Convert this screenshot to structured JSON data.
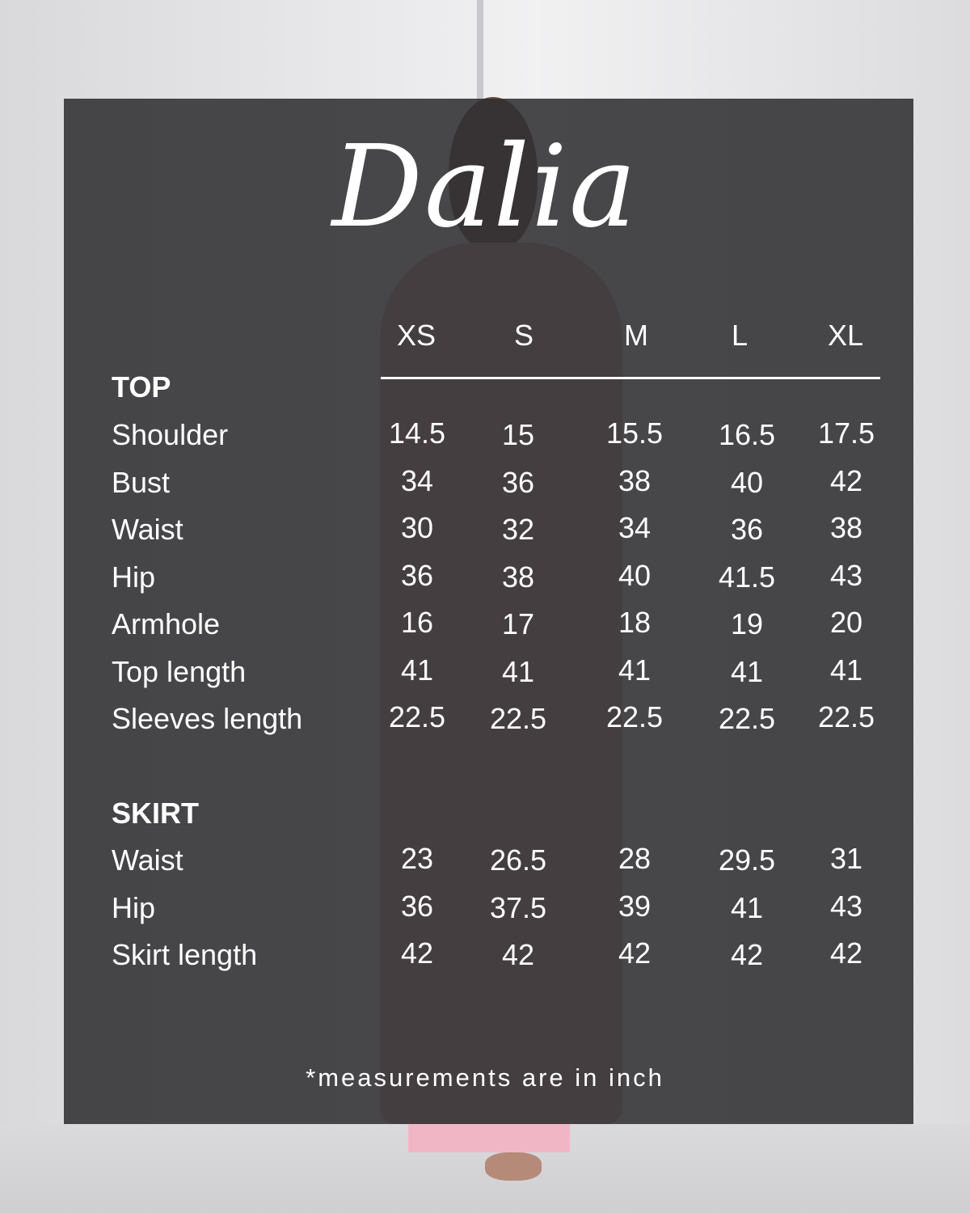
{
  "title": "Dalia",
  "sizes": [
    "XS",
    "S",
    "M",
    "L",
    "XL"
  ],
  "sections": [
    {
      "heading": "TOP",
      "rows": [
        {
          "label": "Shoulder",
          "values": [
            "14.5",
            "15",
            "15.5",
            "16.5",
            "17.5"
          ]
        },
        {
          "label": "Bust",
          "values": [
            "34",
            "36",
            "38",
            "40",
            "42"
          ]
        },
        {
          "label": "Waist",
          "values": [
            "30",
            "32",
            "34",
            "36",
            "38"
          ]
        },
        {
          "label": "Hip",
          "values": [
            "36",
            "38",
            "40",
            "41.5",
            "43"
          ]
        },
        {
          "label": "Armhole",
          "values": [
            "16",
            "17",
            "18",
            "19",
            "20"
          ]
        },
        {
          "label": "Top length",
          "values": [
            "41",
            "41",
            "41",
            "41",
            "41"
          ]
        },
        {
          "label": "Sleeves length",
          "values": [
            "22.5",
            "22.5",
            "22.5",
            "22.5",
            "22.5"
          ]
        }
      ]
    },
    {
      "heading": "SKIRT",
      "rows": [
        {
          "label": "Waist",
          "values": [
            "23",
            "26.5",
            "28",
            "29.5",
            "31"
          ]
        },
        {
          "label": "Hip",
          "values": [
            "36",
            "37.5",
            "39",
            "41",
            "43"
          ]
        },
        {
          "label": "Skirt length",
          "values": [
            "42",
            "42",
            "42",
            "42",
            "42"
          ]
        }
      ]
    }
  ],
  "footnote": "*measurements are in inch",
  "colors": {
    "panel": "#303032",
    "text": "#ffffff",
    "dress": "#d7a3ad"
  }
}
